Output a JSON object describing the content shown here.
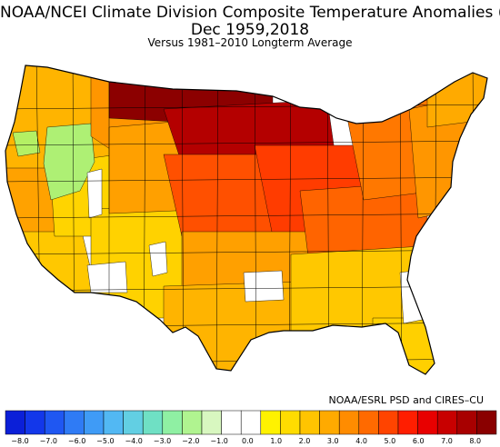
{
  "header": {
    "title": "NOAA/NCEI Climate Division Composite Temperature Anomalies (F)",
    "subtitle": "Dec   1959,2018",
    "note": "Versus 1981–2010 Longterm Average"
  },
  "credit": "NOAA/ESRL PSD and CIRES–CU",
  "legend": {
    "bins": [
      {
        "color": "#0b1fd8"
      },
      {
        "color": "#1337ea"
      },
      {
        "color": "#1f57f2"
      },
      {
        "color": "#2f7bf5"
      },
      {
        "color": "#3f9bf6"
      },
      {
        "color": "#52b8f3"
      },
      {
        "color": "#62cfe3"
      },
      {
        "color": "#6fe0c4"
      },
      {
        "color": "#8ff0a3"
      },
      {
        "color": "#b0f490"
      },
      {
        "color": "#d8f7c0"
      },
      {
        "color": "#ffffff"
      },
      {
        "color": "#ffffff"
      },
      {
        "color": "#fff200"
      },
      {
        "color": "#ffdc00"
      },
      {
        "color": "#ffc400"
      },
      {
        "color": "#ffaa00"
      },
      {
        "color": "#ff8c00"
      },
      {
        "color": "#ff6a00"
      },
      {
        "color": "#ff4400"
      },
      {
        "color": "#ff1e00"
      },
      {
        "color": "#e80000"
      },
      {
        "color": "#c80000"
      },
      {
        "color": "#a80000"
      },
      {
        "color": "#8a0000"
      }
    ],
    "ticks": [
      "−8.0",
      "−7.0",
      "−6.0",
      "−5.0",
      "−4.0",
      "−3.0",
      "−2.0",
      "−1.0",
      "0.0",
      "1.0",
      "2.0",
      "3.0",
      "4.0",
      "5.0",
      "6.0",
      "7.0",
      "8.0"
    ]
  },
  "regions": [
    {
      "name": "pacific-northwest",
      "color": "#ffb400"
    },
    {
      "name": "northern-california",
      "color": "#ffa200"
    },
    {
      "name": "southern-california",
      "color": "#ffc800"
    },
    {
      "name": "great-basin",
      "color": "#ffd400"
    },
    {
      "name": "anomaly-lime-west",
      "color": "#b4f064"
    },
    {
      "name": "anomaly-lime-east",
      "color": "#aef074"
    },
    {
      "name": "northern-rockies",
      "color": "#ff9600"
    },
    {
      "name": "southwest",
      "color": "#ffd200"
    },
    {
      "name": "central-rockies",
      "color": "#ffa000"
    },
    {
      "name": "northern-plains-core",
      "color": "#8c0000"
    },
    {
      "name": "upper-midwest",
      "color": "#b40000"
    },
    {
      "name": "central-plains",
      "color": "#ff5000"
    },
    {
      "name": "midwest",
      "color": "#ff3c00"
    },
    {
      "name": "southern-plains",
      "color": "#ffa000"
    },
    {
      "name": "texas",
      "color": "#ffb400"
    },
    {
      "name": "ohio-valley",
      "color": "#ff6400"
    },
    {
      "name": "great-lakes-east",
      "color": "#ff7800"
    },
    {
      "name": "southeast",
      "color": "#ffc800"
    },
    {
      "name": "northeast",
      "color": "#ff9600"
    },
    {
      "name": "florida",
      "color": "#ffd000"
    },
    {
      "name": "new-england",
      "color": "#ffaa00"
    }
  ],
  "no_data_color": "#ffffff",
  "boundary_color": "#000000"
}
